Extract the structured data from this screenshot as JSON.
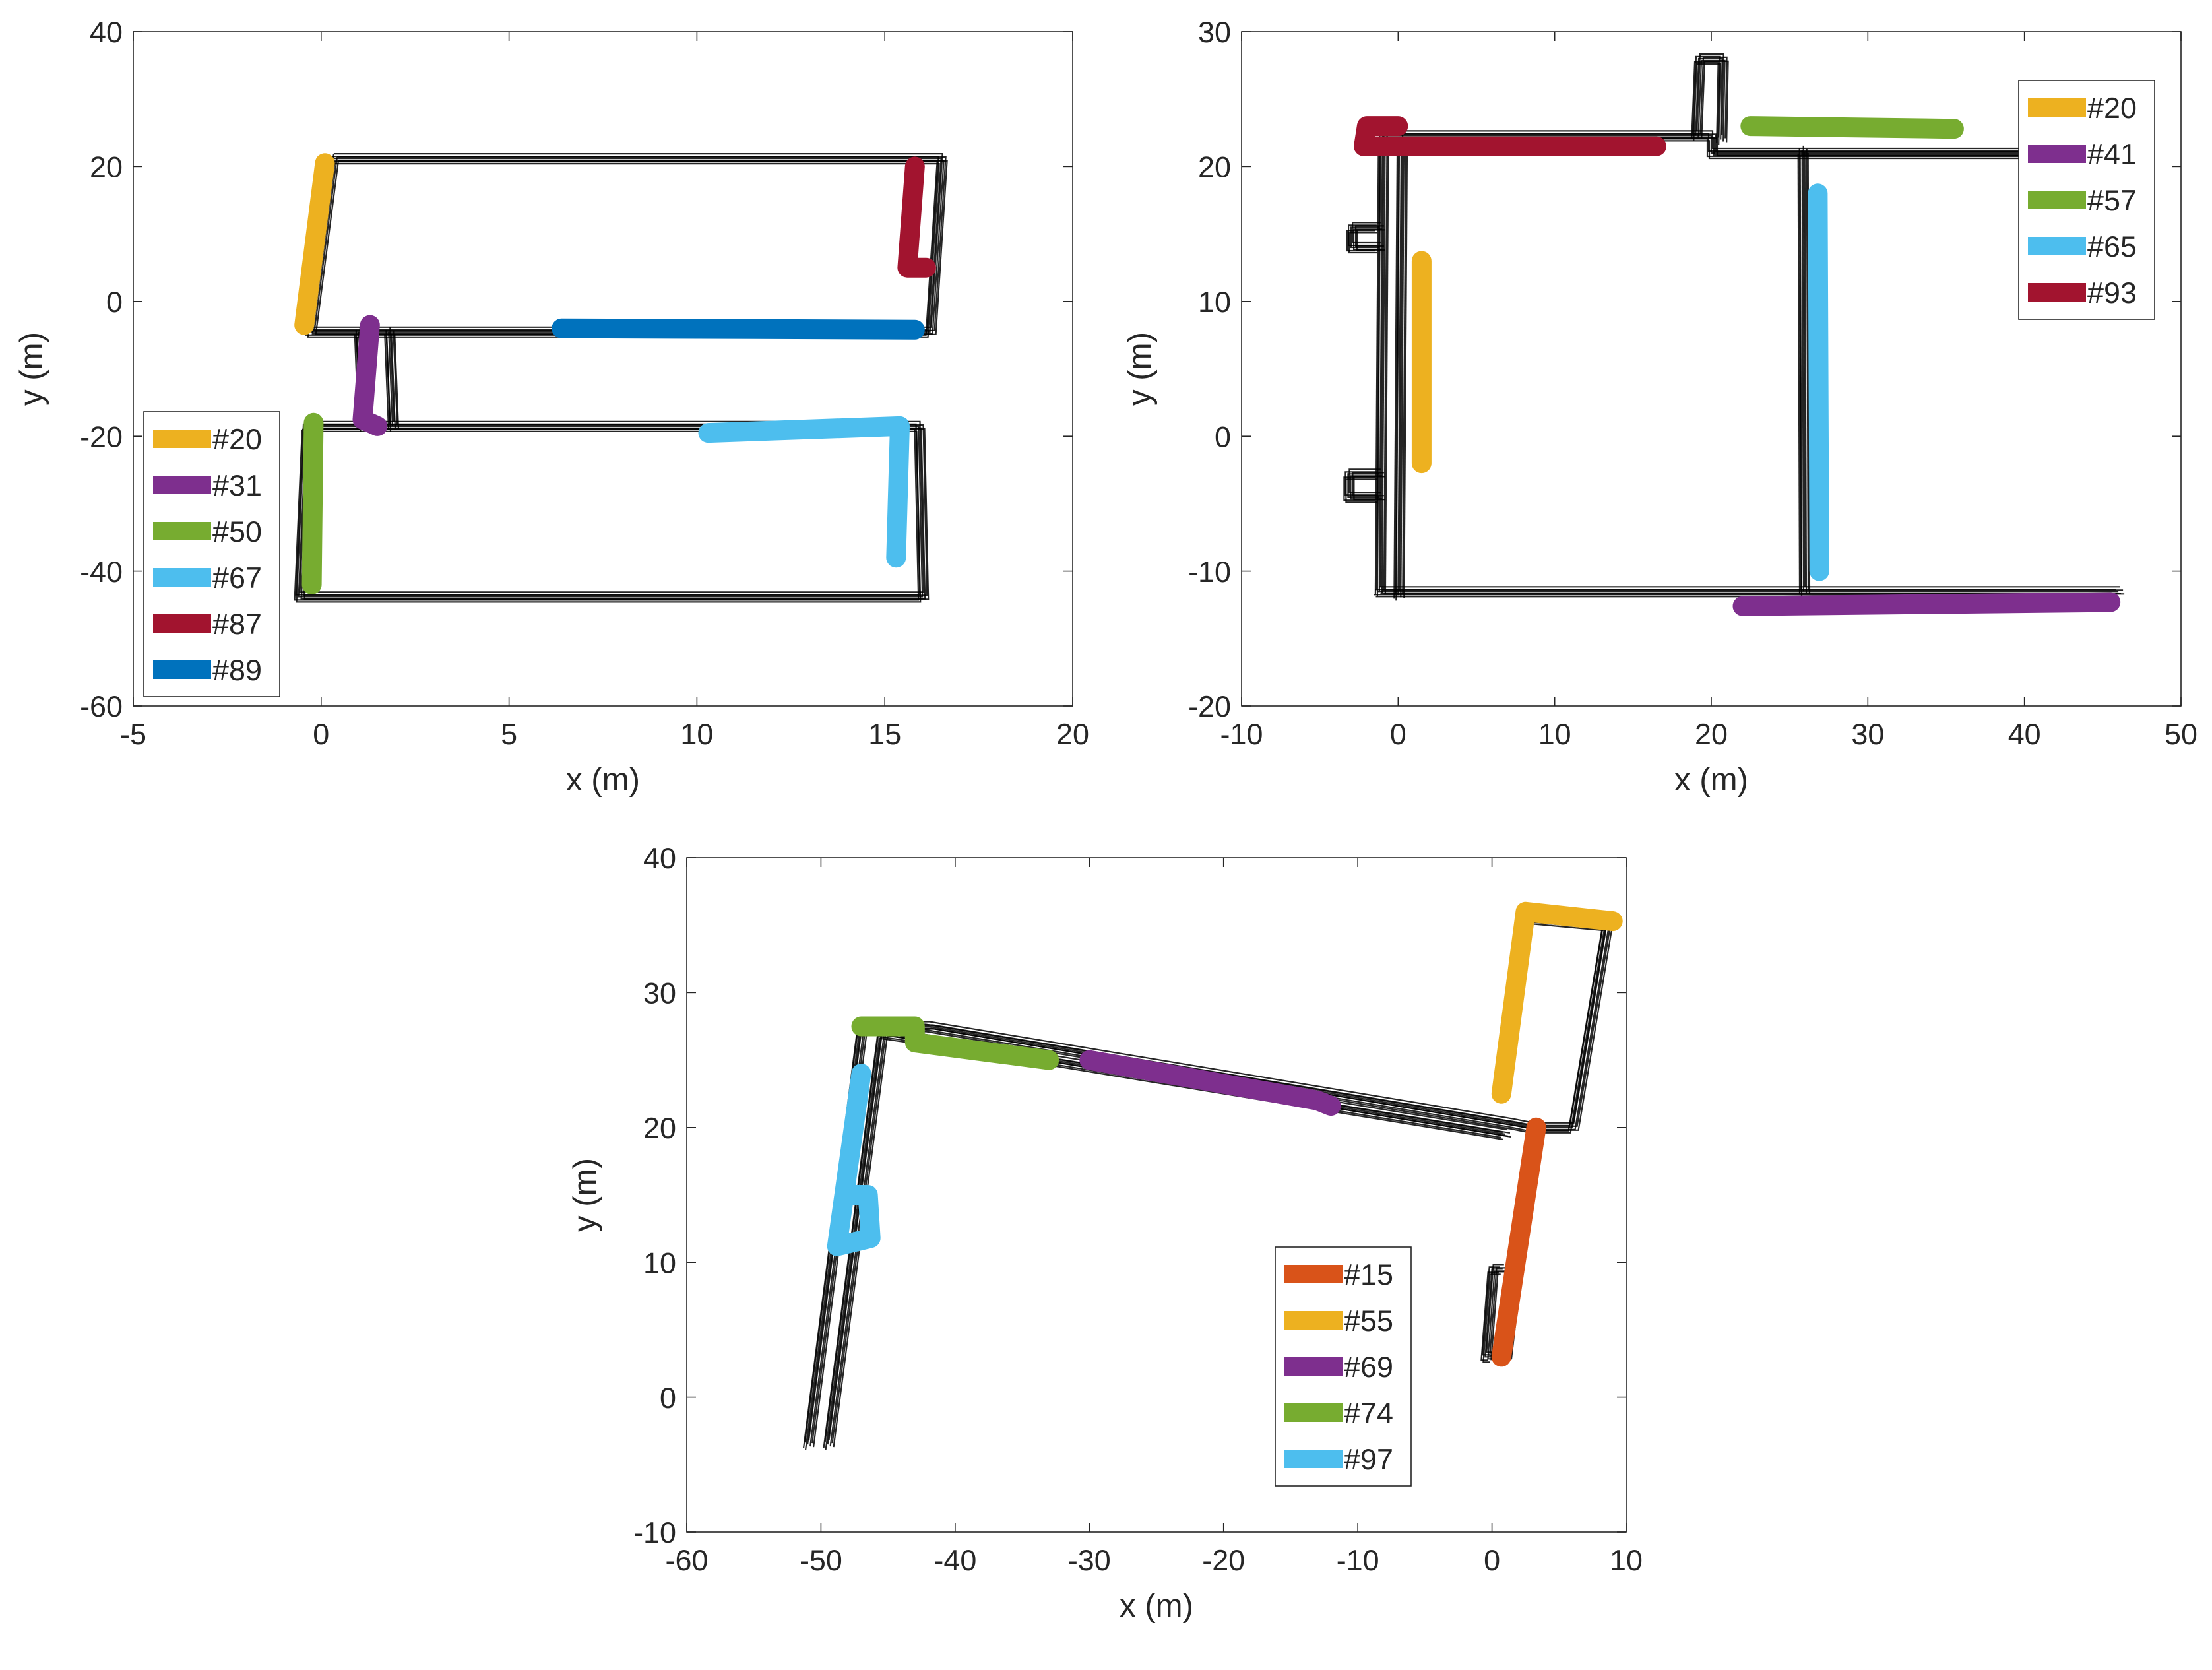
{
  "chart_data": [
    {
      "type": "scatter",
      "xlabel": "x (m)",
      "ylabel": "y (m)",
      "xlim": [
        -5,
        20
      ],
      "ylim": [
        -60,
        40
      ],
      "xticks": [
        -5,
        0,
        5,
        10,
        15,
        20
      ],
      "yticks": [
        -60,
        -40,
        -20,
        0,
        20,
        40
      ],
      "legend_position": "bottom-left",
      "trajectory": {
        "color": "#000000",
        "paths": [
          [
            [
              0.3,
              21.2
            ],
            [
              16.5,
              21.2
            ],
            [
              16.2,
              -4.5
            ],
            [
              -0.3,
              -4.5
            ],
            [
              0.3,
              21.2
            ]
          ],
          [
            [
              -0.4,
              -18.5
            ],
            [
              15.9,
              -18.5
            ],
            [
              16.0,
              -43.8
            ],
            [
              -0.6,
              -43.8
            ],
            [
              -0.4,
              -18.5
            ]
          ],
          [
            [
              1.0,
              -4.5
            ],
            [
              1.1,
              -18.5
            ]
          ],
          [
            [
              1.8,
              -4.5
            ],
            [
              1.9,
              -18.5
            ]
          ]
        ]
      },
      "series": [
        {
          "name": "#20",
          "color": "#EDB120",
          "points": [
            [
              0.1,
              20.5
            ],
            [
              -0.45,
              -3.5
            ]
          ]
        },
        {
          "name": "#31",
          "color": "#7E2F8E",
          "points": [
            [
              1.3,
              -3.5
            ],
            [
              1.1,
              -17.5
            ],
            [
              1.5,
              -18.5
            ]
          ]
        },
        {
          "name": "#50",
          "color": "#77AC30",
          "points": [
            [
              -0.2,
              -18.0
            ],
            [
              -0.25,
              -42.0
            ]
          ]
        },
        {
          "name": "#67",
          "color": "#4DBEEE",
          "points": [
            [
              10.3,
              -19.5
            ],
            [
              15.4,
              -18.5
            ],
            [
              15.3,
              -38.0
            ]
          ]
        },
        {
          "name": "#87",
          "color": "#A2142F",
          "points": [
            [
              15.8,
              20.0
            ],
            [
              15.6,
              5.0
            ],
            [
              16.1,
              5.0
            ]
          ]
        },
        {
          "name": "#89",
          "color": "#0072BD",
          "points": [
            [
              6.4,
              -4.0
            ],
            [
              15.8,
              -4.2
            ]
          ]
        }
      ]
    },
    {
      "type": "scatter",
      "xlabel": "x (m)",
      "ylabel": "y (m)",
      "xlim": [
        -10,
        50
      ],
      "ylim": [
        -20,
        30
      ],
      "xticks": [
        -10,
        0,
        10,
        20,
        30,
        40,
        50
      ],
      "yticks": [
        -20,
        -10,
        0,
        10,
        20,
        30
      ],
      "legend_position": "top-right",
      "trajectory": {
        "color": "#000000",
        "paths": [
          [
            [
              -1.0,
              22.3
            ],
            [
              20.0,
              22.3
            ],
            [
              20.0,
              21.0
            ],
            [
              47.0,
              21.0
            ]
          ],
          [
            [
              -1.3,
              -11.5
            ],
            [
              46.0,
              -11.5
            ]
          ],
          [
            [
              -1.0,
              22.3
            ],
            [
              -1.2,
              -11.5
            ]
          ],
          [
            [
              0.2,
              22.0
            ],
            [
              0.0,
              -11.8
            ]
          ],
          [
            [
              25.8,
              21.2
            ],
            [
              25.9,
              -11.5
            ]
          ],
          [
            [
              19.0,
              22.3
            ],
            [
              19.2,
              28.0
            ],
            [
              20.7,
              28.0
            ],
            [
              20.6,
              22.0
            ]
          ],
          [
            [
              -1.2,
              15.5
            ],
            [
              -3.0,
              15.5
            ],
            [
              -3.0,
              14.0
            ],
            [
              -1.2,
              14.0
            ]
          ],
          [
            [
              -1.2,
              -2.8
            ],
            [
              -3.2,
              -2.8
            ],
            [
              -3.2,
              -4.5
            ],
            [
              -1.2,
              -4.5
            ]
          ]
        ]
      },
      "series": [
        {
          "name": "#20",
          "color": "#EDB120",
          "points": [
            [
              1.5,
              13.0
            ],
            [
              1.5,
              -2.0
            ]
          ]
        },
        {
          "name": "#41",
          "color": "#7E2F8E",
          "points": [
            [
              22.0,
              -12.6
            ],
            [
              45.5,
              -12.3
            ]
          ]
        },
        {
          "name": "#57",
          "color": "#77AC30",
          "points": [
            [
              22.5,
              23.0
            ],
            [
              35.5,
              22.8
            ]
          ]
        },
        {
          "name": "#65",
          "color": "#4DBEEE",
          "points": [
            [
              26.8,
              18.0
            ],
            [
              26.9,
              -10.0
            ]
          ]
        },
        {
          "name": "#93",
          "color": "#A2142F",
          "points": [
            [
              0.0,
              23.0
            ],
            [
              -2.0,
              23.0
            ],
            [
              -2.2,
              21.5
            ],
            [
              16.5,
              21.5
            ]
          ]
        }
      ]
    },
    {
      "type": "scatter",
      "xlabel": "x (m)",
      "ylabel": "y (m)",
      "xlim": [
        -60,
        10
      ],
      "ylim": [
        -10,
        40
      ],
      "xticks": [
        -60,
        -50,
        -40,
        -30,
        -20,
        -10,
        0,
        10
      ],
      "yticks": [
        -10,
        0,
        10,
        20,
        30,
        40
      ],
      "legend_position": "center-right",
      "trajectory": {
        "color": "#000000",
        "paths": [
          [
            [
              -51.0,
              -3.5
            ],
            [
              -47.0,
              27.5
            ],
            [
              -42.0,
              27.5
            ],
            [
              1.5,
              20.3
            ],
            [
              3.0,
              20.0
            ],
            [
              1.0,
              3.0
            ]
          ],
          [
            [
              -49.5,
              -3.5
            ],
            [
              -45.5,
              27.0
            ],
            [
              -42.0,
              26.5
            ],
            [
              1.0,
              19.5
            ]
          ],
          [
            [
              3.0,
              35.5
            ],
            [
              8.5,
              35.0
            ],
            [
              6.0,
              20.0
            ],
            [
              3.0,
              20.0
            ]
          ],
          [
            [
              0.0,
              3.0
            ],
            [
              -0.5,
              3.0
            ],
            [
              0.0,
              9.5
            ],
            [
              0.8,
              9.5
            ]
          ]
        ]
      },
      "series": [
        {
          "name": "#15",
          "color": "#D95319",
          "points": [
            [
              0.7,
              3.0
            ],
            [
              3.3,
              20.0
            ]
          ]
        },
        {
          "name": "#55",
          "color": "#EDB120",
          "points": [
            [
              0.7,
              22.5
            ],
            [
              2.5,
              36.0
            ],
            [
              9.0,
              35.3
            ]
          ]
        },
        {
          "name": "#69",
          "color": "#7E2F8E",
          "points": [
            [
              -30.0,
              25.0
            ],
            [
              -13.0,
              22.0
            ],
            [
              -12.0,
              21.6
            ]
          ]
        },
        {
          "name": "#74",
          "color": "#77AC30",
          "points": [
            [
              -47.0,
              27.5
            ],
            [
              -43.0,
              27.5
            ],
            [
              -43.0,
              26.3
            ],
            [
              -33.0,
              25.0
            ]
          ]
        },
        {
          "name": "#97",
          "color": "#4DBEEE",
          "points": [
            [
              -47.0,
              24.0
            ],
            [
              -48.8,
              11.2
            ],
            [
              -46.3,
              11.8
            ],
            [
              -46.5,
              15.0
            ],
            [
              -47.8,
              15.0
            ]
          ]
        }
      ]
    }
  ]
}
